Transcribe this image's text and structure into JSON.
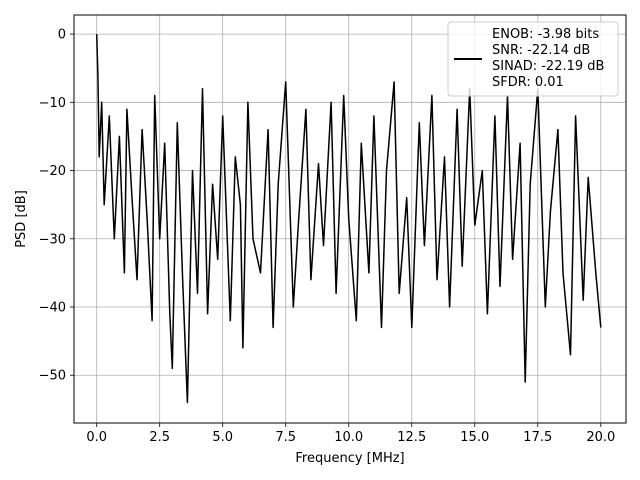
{
  "chart_data": {
    "type": "line",
    "title": "",
    "xlabel": "Frequency [MHz]",
    "ylabel": "PSD [dB]",
    "xlim": [
      -0.9,
      21.0
    ],
    "ylim": [
      -57,
      2.8
    ],
    "xticks": [
      {
        "value": 0.0,
        "label": "0.0"
      },
      {
        "value": 2.5,
        "label": "2.5"
      },
      {
        "value": 5.0,
        "label": "5.0"
      },
      {
        "value": 7.5,
        "label": "7.5"
      },
      {
        "value": 10.0,
        "label": "10.0"
      },
      {
        "value": 12.5,
        "label": "12.5"
      },
      {
        "value": 15.0,
        "label": "15.0"
      },
      {
        "value": 17.5,
        "label": "17.5"
      },
      {
        "value": 20.0,
        "label": "20.0"
      }
    ],
    "yticks": [
      {
        "value": 0,
        "label": "0"
      },
      {
        "value": -10,
        "label": "−10"
      },
      {
        "value": -20,
        "label": "−20"
      },
      {
        "value": -30,
        "label": "−30"
      },
      {
        "value": -40,
        "label": "−40"
      },
      {
        "value": -50,
        "label": "−50"
      }
    ],
    "grid": true,
    "legend_position": "top-right",
    "legend_lines": [
      "ENOB: -3.98 bits",
      "SNR: -22.14 dB",
      "SINAD: -22.19 dB",
      "SFDR: 0.01"
    ],
    "line_color": "#000000",
    "series": [
      {
        "x": [
          0.0,
          0.05,
          0.1,
          0.2,
          0.3,
          0.5,
          0.7,
          0.9,
          1.1,
          1.2,
          1.4,
          1.6,
          1.8,
          2.0,
          2.2,
          2.3,
          2.5,
          2.7,
          2.9,
          3.0,
          3.2,
          3.4,
          3.6,
          3.8,
          4.0,
          4.2,
          4.4,
          4.6,
          4.8,
          5.0,
          5.3,
          5.5,
          5.7,
          5.8,
          6.0,
          6.2,
          6.5,
          6.8,
          7.0,
          7.2,
          7.5,
          7.8,
          8.0,
          8.3,
          8.5,
          8.8,
          9.0,
          9.3,
          9.5,
          9.8,
          10.0,
          10.3,
          10.5,
          10.8,
          11.0,
          11.3,
          11.5,
          11.8,
          12.0,
          12.3,
          12.5,
          12.8,
          13.0,
          13.3,
          13.5,
          13.8,
          14.0,
          14.3,
          14.5,
          14.8,
          15.0,
          15.3,
          15.5,
          15.8,
          16.0,
          16.3,
          16.5,
          16.8,
          17.0,
          17.2,
          17.5,
          17.8,
          18.0,
          18.3,
          18.5,
          18.8,
          19.0,
          19.3,
          19.5,
          19.8,
          20.0
        ],
        "y": [
          0.0,
          -6.0,
          -18.0,
          -10.0,
          -25.0,
          -12.0,
          -30.0,
          -15.0,
          -35.0,
          -11.0,
          -24.0,
          -36.0,
          -14.0,
          -27.0,
          -42.0,
          -9.0,
          -30.0,
          -16.0,
          -41.0,
          -49.0,
          -13.0,
          -35.0,
          -54.0,
          -20.0,
          -38.0,
          -8.0,
          -41.0,
          -22.0,
          -33.0,
          -12.0,
          -42.0,
          -18.0,
          -25.0,
          -46.0,
          -10.0,
          -30.0,
          -35.0,
          -14.0,
          -43.0,
          -22.0,
          -7.0,
          -40.0,
          -28.0,
          -11.0,
          -36.0,
          -19.0,
          -31.0,
          -10.0,
          -38.0,
          -9.0,
          -27.0,
          -42.0,
          -16.0,
          -35.0,
          -12.0,
          -43.0,
          -20.0,
          -7.0,
          -38.0,
          -24.0,
          -43.0,
          -13.0,
          -31.0,
          -9.0,
          -36.0,
          -18.0,
          -40.0,
          -11.0,
          -34.0,
          -8.0,
          -28.0,
          -20.0,
          -41.0,
          -12.0,
          -37.0,
          -9.0,
          -33.0,
          -16.0,
          -51.0,
          -22.0,
          -8.0,
          -40.0,
          -26.0,
          -14.0,
          -35.0,
          -47.0,
          -12.0,
          -39.0,
          -21.0,
          -35.0,
          -43.0
        ]
      }
    ]
  }
}
